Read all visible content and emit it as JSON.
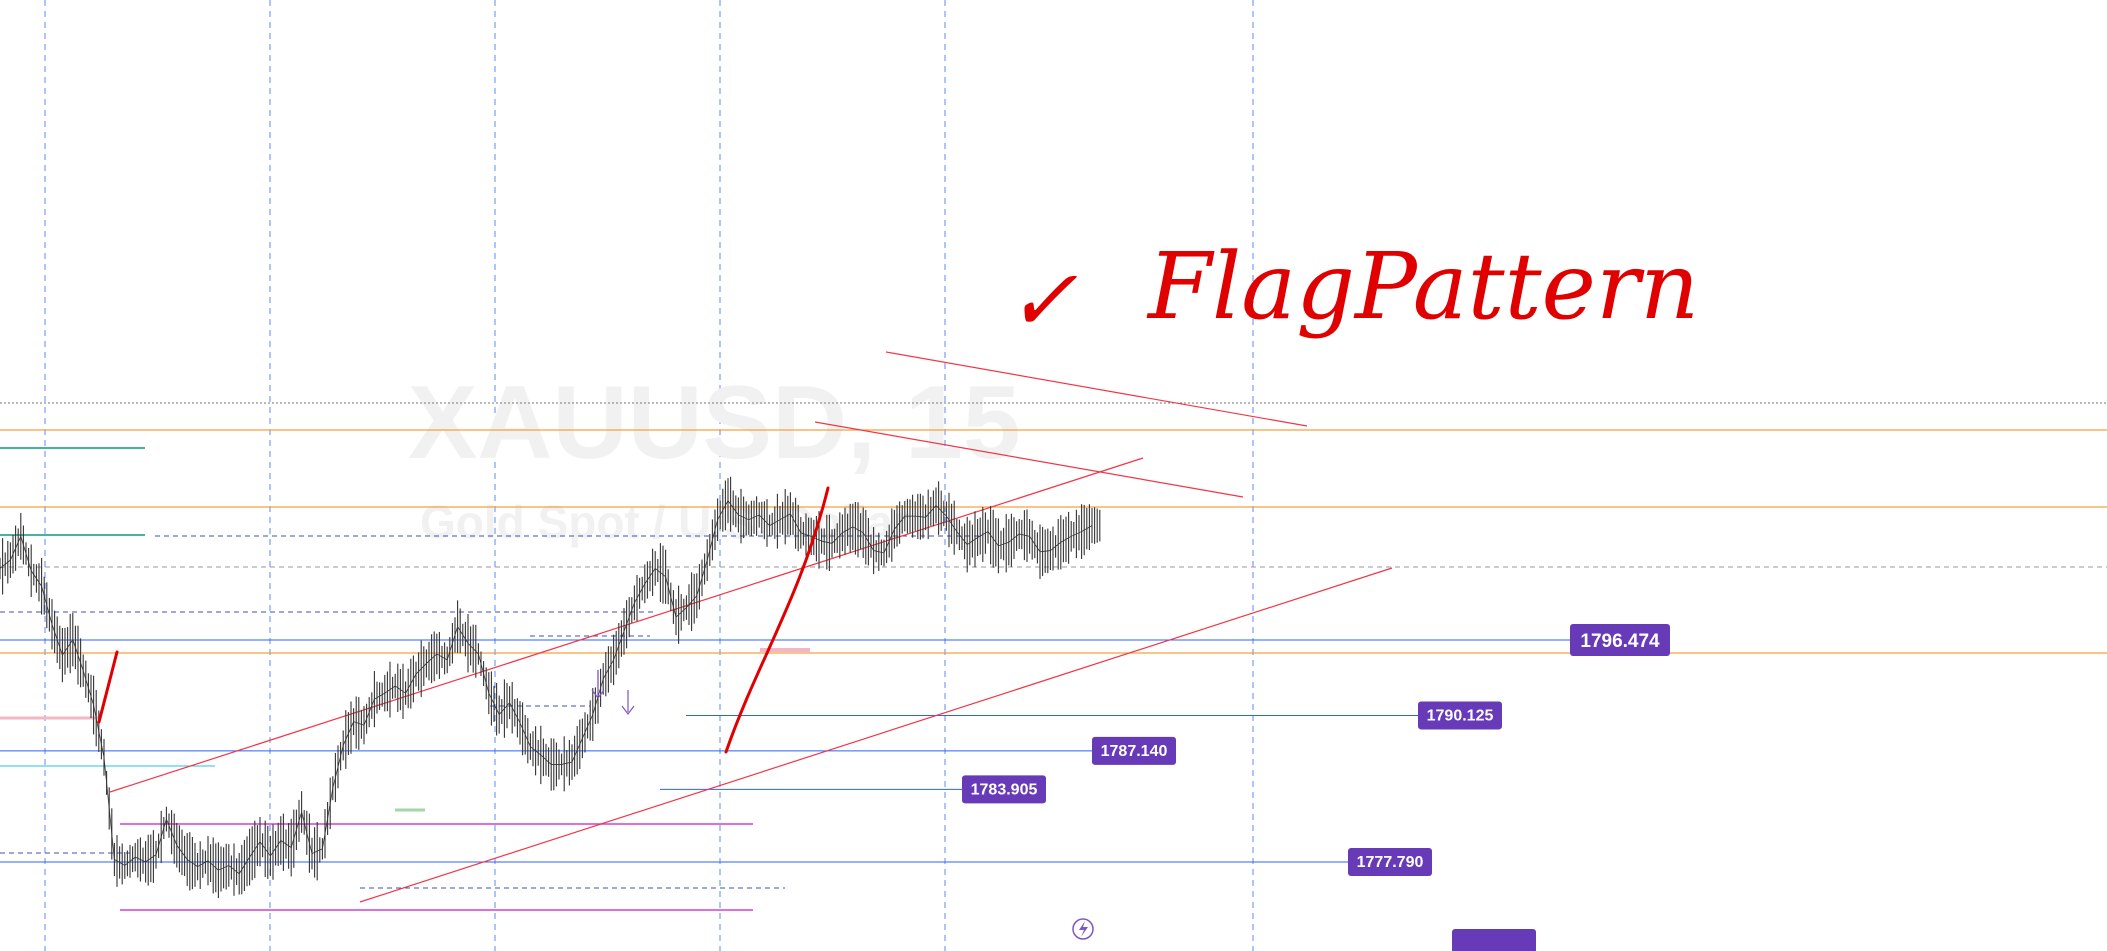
{
  "chart_data": {
    "type": "line",
    "symbol": "XAUUSD, 15",
    "description": "Gold Spot / U.S. Dollar",
    "annotation_text": "FlagPattern",
    "annotation_mark": "✓",
    "ylim": [
      1774.5,
      1808.5
    ],
    "x_index_range": [
      0,
      210
    ],
    "price_levels": [
      {
        "value": 1796.474,
        "label": "1796.474",
        "highlight": true
      },
      {
        "value": 1790.125,
        "label": "1790.125",
        "highlight": false
      },
      {
        "value": 1787.14,
        "label": "1787.140",
        "highlight": false
      },
      {
        "value": 1783.905,
        "label": "1783.905",
        "highlight": false
      },
      {
        "value": 1777.79,
        "label": "1777.790",
        "highlight": false
      }
    ],
    "series": [
      {
        "x": [
          0,
          2,
          4,
          6,
          8,
          10,
          12,
          14,
          16,
          18,
          20,
          22,
          24,
          26,
          28,
          30,
          32,
          34,
          36,
          38,
          40,
          42,
          44,
          46,
          48,
          50,
          52,
          54,
          56,
          58,
          60,
          62,
          64,
          66,
          68,
          70,
          72,
          74,
          76,
          78,
          80,
          82,
          84,
          86,
          88,
          90,
          92,
          94,
          96,
          98,
          100,
          102,
          104,
          106,
          108,
          110,
          112,
          114,
          116,
          118,
          120,
          122,
          124,
          126,
          128,
          130,
          132,
          134,
          136,
          138,
          140,
          142,
          144,
          146,
          148,
          150,
          152,
          154,
          156,
          158,
          160,
          162,
          164,
          166,
          168,
          170,
          172,
          174,
          176,
          178,
          180,
          182,
          184,
          186,
          188,
          190,
          192,
          194,
          196,
          198,
          200,
          202,
          204,
          206,
          208,
          210
        ],
        "values": [
          1802.5,
          1803.2,
          1805.2,
          1802.3,
          1801.0,
          1797.8,
          1795.2,
          1796.5,
          1793.9,
          1791.0,
          1786.6,
          1778.0,
          1777.5,
          1778.2,
          1777.8,
          1778.4,
          1781.4,
          1779.2,
          1778.0,
          1777.4,
          1777.9,
          1777.1,
          1777.5,
          1776.8,
          1778.2,
          1779.5,
          1778.3,
          1779.6,
          1779.0,
          1782.0,
          1778.5,
          1778.9,
          1784.0,
          1787.6,
          1789.6,
          1789.3,
          1791.5,
          1792.0,
          1792.6,
          1792.0,
          1793.6,
          1794.5,
          1795.3,
          1794.8,
          1797.6,
          1796.2,
          1795.3,
          1792.0,
          1790.2,
          1791.2,
          1789.5,
          1787.5,
          1786.8,
          1786.0,
          1786.0,
          1786.2,
          1788.2,
          1790.2,
          1793.2,
          1794.8,
          1797.2,
          1799.6,
          1801.2,
          1802.5,
          1801.8,
          1798.4,
          1799.2,
          1800.2,
          1803.2,
          1806.6,
          1808.2,
          1807.0,
          1806.6,
          1807.0,
          1806.1,
          1806.6,
          1807.1,
          1805.5,
          1805.2,
          1804.8,
          1804.6,
          1805.5,
          1806.0,
          1805.5,
          1804.0,
          1803.8,
          1805.8,
          1806.9,
          1806.9,
          1806.8,
          1807.8,
          1806.9,
          1805.6,
          1804.5,
          1805.1,
          1805.6,
          1804.4,
          1804.7,
          1805.4,
          1805.2,
          1803.9,
          1804.0,
          1804.7,
          1805.2,
          1805.6,
          1806.1
        ]
      }
    ],
    "colors": {
      "candles": "#333333",
      "price_level_line": "#2962ff",
      "price_tag": "#673ab7",
      "orange_line": "#f7a13d",
      "trend_line": "#f23645",
      "red_marker": "#e00000",
      "green_line": "#089981",
      "magenta_line": "#d040d0",
      "grid_dashed": "#2962ff",
      "watermark": "#f1f1f1"
    }
  }
}
